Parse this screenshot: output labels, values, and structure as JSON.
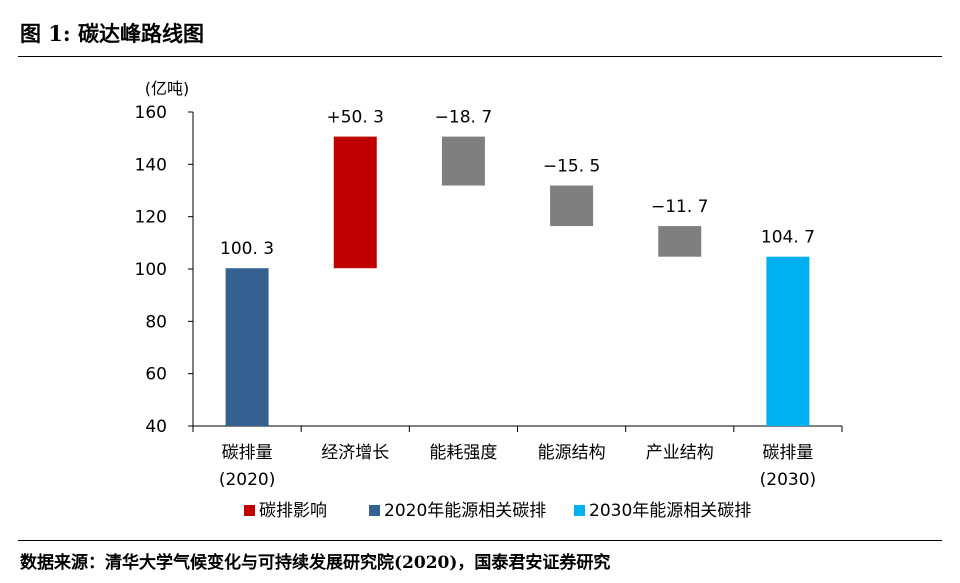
{
  "figure": {
    "title": "图 1:  碳达峰路线图",
    "source": "数据来源：清华大学气候变化与可持续发展研究院(2020)，国泰君安证券研究"
  },
  "chart_data": {
    "type": "bar",
    "subtype": "waterfall",
    "unit_label": "(亿吨)",
    "ylim": [
      40,
      160
    ],
    "yticks": [
      40,
      60,
      80,
      100,
      120,
      140,
      160
    ],
    "categories": [
      [
        "碳排量",
        "(2020)"
      ],
      [
        "经济增长"
      ],
      [
        "能耗强度"
      ],
      [
        "能源结构"
      ],
      [
        "产业结构"
      ],
      [
        "碳排量",
        "(2030)"
      ]
    ],
    "bars": [
      {
        "base": 40,
        "top": 100.3,
        "label": "100. 3",
        "series": 1
      },
      {
        "base": 100.3,
        "top": 150.6,
        "label": "+50. 3",
        "series": 0
      },
      {
        "base": 131.9,
        "top": 150.6,
        "label": "−18. 7",
        "series": 2
      },
      {
        "base": 116.4,
        "top": 131.9,
        "label": "−15. 5",
        "series": 2
      },
      {
        "base": 104.7,
        "top": 116.4,
        "label": "−11. 7",
        "series": 2
      },
      {
        "base": 40,
        "top": 104.7,
        "label": "104. 7",
        "series": 3
      }
    ],
    "series_colors": [
      "#c00000",
      "#34618f",
      "#7f7f7f",
      "#00b0f0"
    ],
    "legend": [
      {
        "label": "碳排影响",
        "color": "#c00000"
      },
      {
        "label": "2020年能源相关碳排",
        "color": "#34618f"
      },
      {
        "label": "2030年能源相关碳排",
        "color": "#00b0f0"
      }
    ],
    "legend_position": "bottom-center",
    "grid": false
  }
}
